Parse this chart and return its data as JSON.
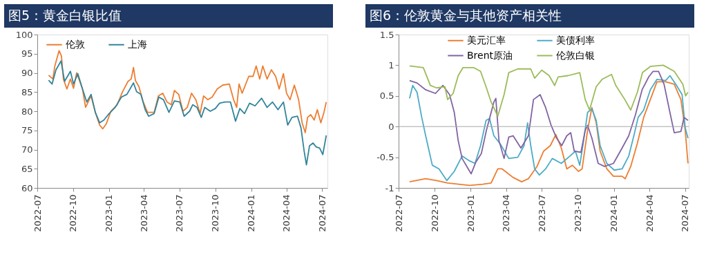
{
  "chart_data": [
    {
      "type": "line",
      "title": "图5：黄金白银比值",
      "legend": "top left",
      "grid": false,
      "xlim": [
        "2022-07-01",
        "2024-07-15"
      ],
      "xticks": [
        "2022-07",
        "2022-10",
        "2023-01",
        "2023-04",
        "2023-07",
        "2023-10",
        "2024-01",
        "2024-04",
        "2024-07"
      ],
      "ylim": [
        60,
        100
      ],
      "yticks": [
        60,
        65,
        70,
        75,
        80,
        85,
        90,
        95,
        100
      ],
      "series": [
        {
          "name": "伦敦",
          "color": "#ed7d31",
          "x": [
            "2022-07-30",
            "2022-08-10",
            "2022-08-15",
            "2022-08-26",
            "2022-09-01",
            "2022-09-06",
            "2022-09-15",
            "2022-09-24",
            "2022-10-02",
            "2022-10-10",
            "2022-10-25",
            "2022-11-02",
            "2022-11-16",
            "2022-11-27",
            "2022-12-08",
            "2022-12-16",
            "2022-12-25",
            "2023-01-06",
            "2023-01-22",
            "2023-02-05",
            "2023-02-19",
            "2023-02-27",
            "2023-03-05",
            "2023-03-10",
            "2023-03-19",
            "2023-03-30",
            "2023-04-10",
            "2023-04-27",
            "2023-05-08",
            "2023-05-19",
            "2023-05-30",
            "2023-06-10",
            "2023-06-18",
            "2023-06-29",
            "2023-07-10",
            "2023-07-21",
            "2023-08-01",
            "2023-08-12",
            "2023-08-23",
            "2023-09-01",
            "2023-09-12",
            "2023-09-23",
            "2023-10-06",
            "2023-10-20",
            "2023-11-06",
            "2023-11-17",
            "2023-11-25",
            "2023-12-01",
            "2023-12-09",
            "2023-12-26",
            "2024-01-06",
            "2024-01-14",
            "2024-01-23",
            "2024-01-31",
            "2024-02-11",
            "2024-02-22",
            "2024-03-04",
            "2024-03-13",
            "2024-03-24",
            "2024-04-01",
            "2024-04-10",
            "2024-04-21",
            "2024-05-02",
            "2024-05-11",
            "2024-05-19",
            "2024-05-25",
            "2024-06-02",
            "2024-06-11",
            "2024-06-19",
            "2024-06-28",
            "2024-07-06",
            "2024-07-12"
          ],
          "values": [
            89.4,
            88.4,
            91.8,
            95.8,
            94.4,
            88.4,
            85.8,
            88.4,
            86,
            90,
            85.8,
            81,
            84,
            79.7,
            76.4,
            75.4,
            76.7,
            80,
            81.7,
            85.1,
            87.8,
            88.4,
            91.4,
            88,
            86.4,
            82.4,
            79.7,
            79.7,
            84,
            84.7,
            82.4,
            81.7,
            85.4,
            84.4,
            80,
            81,
            84.7,
            83,
            79.4,
            84,
            83,
            83.7,
            85.8,
            86.8,
            87.1,
            83,
            81,
            87.1,
            84.7,
            89.1,
            89.1,
            91.8,
            88.4,
            91.8,
            88.4,
            90.8,
            89.1,
            85.8,
            89.8,
            84.7,
            83,
            86.8,
            83,
            77,
            74.4,
            78.4,
            79.1,
            77.7,
            80.4,
            77,
            79.7,
            82.4
          ]
        },
        {
          "name": "上海",
          "color": "#31849b",
          "x": [
            "2022-07-30",
            "2022-08-08",
            "2022-08-18",
            "2022-08-31",
            "2022-09-09",
            "2022-09-24",
            "2022-10-02",
            "2022-10-13",
            "2022-10-25",
            "2022-11-05",
            "2022-11-16",
            "2022-11-27",
            "2022-12-08",
            "2022-12-19",
            "2022-12-30",
            "2023-01-17",
            "2023-02-02",
            "2023-02-16",
            "2023-03-05",
            "2023-03-13",
            "2023-03-24",
            "2023-04-04",
            "2023-04-13",
            "2023-04-27",
            "2023-05-09",
            "2023-05-21",
            "2023-06-04",
            "2023-06-18",
            "2023-07-02",
            "2023-07-13",
            "2023-07-27",
            "2023-08-04",
            "2023-08-15",
            "2023-08-26",
            "2023-09-04",
            "2023-09-18",
            "2023-10-01",
            "2023-10-12",
            "2023-10-26",
            "2023-11-09",
            "2023-11-22",
            "2023-12-03",
            "2023-12-15",
            "2023-12-28",
            "2024-01-11",
            "2024-01-28",
            "2024-02-11",
            "2024-02-25",
            "2024-03-10",
            "2024-03-24",
            "2024-04-04",
            "2024-04-15",
            "2024-04-29",
            "2024-05-08",
            "2024-05-16",
            "2024-05-22",
            "2024-05-30",
            "2024-06-08",
            "2024-06-16",
            "2024-06-25",
            "2024-07-03",
            "2024-07-12"
          ],
          "values": [
            88.1,
            87.1,
            90.8,
            93.1,
            87.8,
            90.4,
            87.1,
            89.8,
            85.8,
            82.4,
            84.4,
            79.7,
            77,
            77.7,
            79.1,
            81,
            83.7,
            84.4,
            87.4,
            85.1,
            84.4,
            80.4,
            78.7,
            79.4,
            83.7,
            83,
            79.7,
            82.7,
            82.4,
            78.7,
            80,
            81.7,
            81,
            78.4,
            81,
            80,
            80.7,
            82.1,
            82.4,
            82.4,
            77.4,
            80.7,
            79.4,
            82.1,
            81.4,
            83.4,
            81,
            82.4,
            80.4,
            82.4,
            76.4,
            78.4,
            78.7,
            75.7,
            69.7,
            66,
            71,
            71.7,
            70.7,
            70.4,
            68.7,
            73.7
          ]
        }
      ]
    },
    {
      "type": "line",
      "title": "图6：伦敦黄金与其他资产相关性",
      "legend": "top",
      "grid": false,
      "xlim": [
        "2022-07-01",
        "2024-07-10"
      ],
      "xticks": [
        "2022-07",
        "2022-10",
        "2023-01",
        "2023-04",
        "2023-07",
        "2023-10",
        "2024-01",
        "2024-04",
        "2024-07"
      ],
      "ylim": [
        -1,
        1.5
      ],
      "yticks": [
        -1,
        -0.5,
        0,
        0.5,
        1,
        1.5
      ],
      "ref_lines": [
        {
          "axis": "y",
          "value": 0,
          "color": "#a6a6a6"
        }
      ],
      "series": [
        {
          "name": "美元汇率",
          "color": "#ed7d31",
          "x": [
            "2022-07-29",
            "2022-09-08",
            "2022-10-06",
            "2022-11-03",
            "2022-12-01",
            "2022-12-29",
            "2023-02-01",
            "2023-02-22",
            "2023-03-11",
            "2023-03-22",
            "2023-04-19",
            "2023-05-11",
            "2023-05-28",
            "2023-06-19",
            "2023-07-06",
            "2023-07-23",
            "2023-08-06",
            "2023-08-20",
            "2023-09-03",
            "2023-09-17",
            "2023-10-03",
            "2023-10-12",
            "2023-10-26",
            "2023-11-06",
            "2023-11-17",
            "2023-11-27",
            "2023-12-14",
            "2023-12-31",
            "2024-01-22",
            "2024-01-30",
            "2024-02-13",
            "2024-03-01",
            "2024-03-17",
            "2024-04-03",
            "2024-04-20",
            "2024-05-12",
            "2024-06-03",
            "2024-06-20",
            "2024-07-01",
            "2024-07-08"
          ],
          "values": [
            -0.9,
            -0.85,
            -0.88,
            -0.92,
            -0.94,
            -0.96,
            -0.94,
            -0.92,
            -0.69,
            -0.69,
            -0.83,
            -0.9,
            -0.85,
            -0.65,
            -0.4,
            -0.31,
            -0.13,
            -0.35,
            -0.69,
            -0.63,
            -0.73,
            -0.69,
            -0.06,
            0.31,
            0.06,
            -0.4,
            -0.69,
            -0.81,
            -0.81,
            -0.85,
            -0.65,
            -0.27,
            0.15,
            0.44,
            0.73,
            0.73,
            0.69,
            0.44,
            -0.06,
            -0.6
          ]
        },
        {
          "name": "美债利率",
          "color": "#4bacc6",
          "x": [
            "2022-07-29",
            "2022-08-06",
            "2022-08-17",
            "2022-08-29",
            "2022-09-08",
            "2022-09-25",
            "2022-10-12",
            "2022-11-01",
            "2022-11-20",
            "2022-12-10",
            "2022-12-29",
            "2023-01-12",
            "2023-01-26",
            "2023-02-09",
            "2023-02-18",
            "2023-03-01",
            "2023-03-18",
            "2023-04-08",
            "2023-05-01",
            "2023-05-17",
            "2023-05-26",
            "2023-06-03",
            "2023-06-13",
            "2023-06-25",
            "2023-07-11",
            "2023-07-28",
            "2023-08-20",
            "2023-09-11",
            "2023-09-25",
            "2023-10-06",
            "2023-10-14",
            "2023-10-26",
            "2023-11-06",
            "2023-11-17",
            "2023-11-27",
            "2023-12-14",
            "2024-01-02",
            "2024-01-22",
            "2024-02-08",
            "2024-02-21",
            "2024-03-03",
            "2024-03-17",
            "2024-04-03",
            "2024-04-20",
            "2024-05-12",
            "2024-05-23",
            "2024-06-09",
            "2024-06-23",
            "2024-07-01",
            "2024-07-08"
          ],
          "values": [
            0.46,
            0.67,
            0.56,
            0.15,
            -0.15,
            -0.63,
            -0.69,
            -0.88,
            -0.73,
            -0.48,
            -0.56,
            -0.6,
            -0.31,
            0.1,
            0.13,
            -0.15,
            -0.29,
            -0.52,
            -0.5,
            -0.31,
            0.06,
            -0.31,
            -0.69,
            -0.79,
            -0.69,
            -0.52,
            -0.6,
            -0.48,
            -0.4,
            -0.63,
            -0.31,
            0.23,
            0.29,
            0.1,
            -0.31,
            -0.6,
            -0.71,
            -0.69,
            -0.48,
            -0.15,
            0.15,
            0.27,
            0.6,
            0.77,
            0.75,
            0.83,
            0.67,
            0.52,
            -0.02,
            -0.19
          ]
        },
        {
          "name": "Brent原油",
          "color": "#8064a2",
          "x": [
            "2022-07-29",
            "2022-08-17",
            "2022-09-08",
            "2022-10-03",
            "2022-10-22",
            "2022-11-08",
            "2022-11-20",
            "2022-11-30",
            "2022-12-10",
            "2022-12-22",
            "2023-01-02",
            "2023-01-14",
            "2023-01-28",
            "2023-02-10",
            "2023-03-01",
            "2023-03-06",
            "2023-03-14",
            "2023-03-27",
            "2023-04-08",
            "2023-04-19",
            "2023-05-09",
            "2023-05-28",
            "2023-06-10",
            "2023-06-27",
            "2023-07-11",
            "2023-07-25",
            "2023-08-08",
            "2023-08-21",
            "2023-09-03",
            "2023-09-13",
            "2023-09-22",
            "2023-10-09",
            "2023-10-20",
            "2023-10-26",
            "2023-11-06",
            "2023-11-22",
            "2023-12-08",
            "2023-12-31",
            "2024-01-22",
            "2024-02-08",
            "2024-02-25",
            "2024-03-13",
            "2024-03-30",
            "2024-04-10",
            "2024-04-24",
            "2024-05-08",
            "2024-05-23",
            "2024-06-03",
            "2024-06-20",
            "2024-06-28",
            "2024-07-08"
          ],
          "values": [
            0.75,
            0.71,
            0.6,
            0.54,
            0.67,
            0.52,
            0.23,
            -0.23,
            -0.52,
            -0.65,
            -0.77,
            -0.58,
            -0.44,
            -0.06,
            0.4,
            0.46,
            -0.23,
            -0.52,
            -0.17,
            -0.15,
            -0.35,
            -0.15,
            0.44,
            0.52,
            0.31,
            0.02,
            -0.19,
            -0.31,
            -0.15,
            -0.1,
            -0.4,
            -0.42,
            -0.06,
            0.02,
            -0.19,
            -0.6,
            -0.65,
            -0.6,
            -0.35,
            -0.15,
            0.19,
            0.6,
            0.81,
            0.9,
            0.9,
            0.69,
            0.23,
            -0.1,
            -0.08,
            0.15,
            0.1
          ]
        },
        {
          "name": "伦敦白银",
          "color": "#9bbb59",
          "x": [
            "2022-07-29",
            "2022-09-02",
            "2022-09-20",
            "2022-10-06",
            "2022-10-27",
            "2022-11-03",
            "2022-11-17",
            "2022-11-30",
            "2022-12-12",
            "2023-01-09",
            "2023-01-26",
            "2023-02-09",
            "2023-02-22",
            "2023-03-11",
            "2023-03-27",
            "2023-04-08",
            "2023-05-01",
            "2023-06-03",
            "2023-06-13",
            "2023-07-01",
            "2023-07-20",
            "2023-08-03",
            "2023-08-12",
            "2023-09-06",
            "2023-10-06",
            "2023-10-20",
            "2023-10-31",
            "2023-11-17",
            "2023-12-02",
            "2023-12-26",
            "2024-01-06",
            "2024-01-29",
            "2024-02-13",
            "2024-03-01",
            "2024-03-14",
            "2024-04-03",
            "2024-05-06",
            "2024-06-03",
            "2024-06-25",
            "2024-07-02",
            "2024-07-08"
          ],
          "values": [
            0.99,
            0.96,
            0.67,
            0.63,
            0.65,
            0.44,
            0.54,
            0.83,
            0.96,
            0.96,
            0.9,
            0.65,
            0.4,
            0.17,
            0.52,
            0.88,
            0.94,
            0.94,
            0.79,
            0.92,
            0.83,
            0.67,
            0.81,
            0.83,
            0.88,
            0.44,
            0.27,
            0.65,
            0.77,
            0.85,
            0.67,
            0.44,
            0.27,
            0.56,
            0.88,
            0.98,
            1.0,
            0.9,
            0.69,
            0.5,
            0.56
          ]
        }
      ]
    }
  ]
}
